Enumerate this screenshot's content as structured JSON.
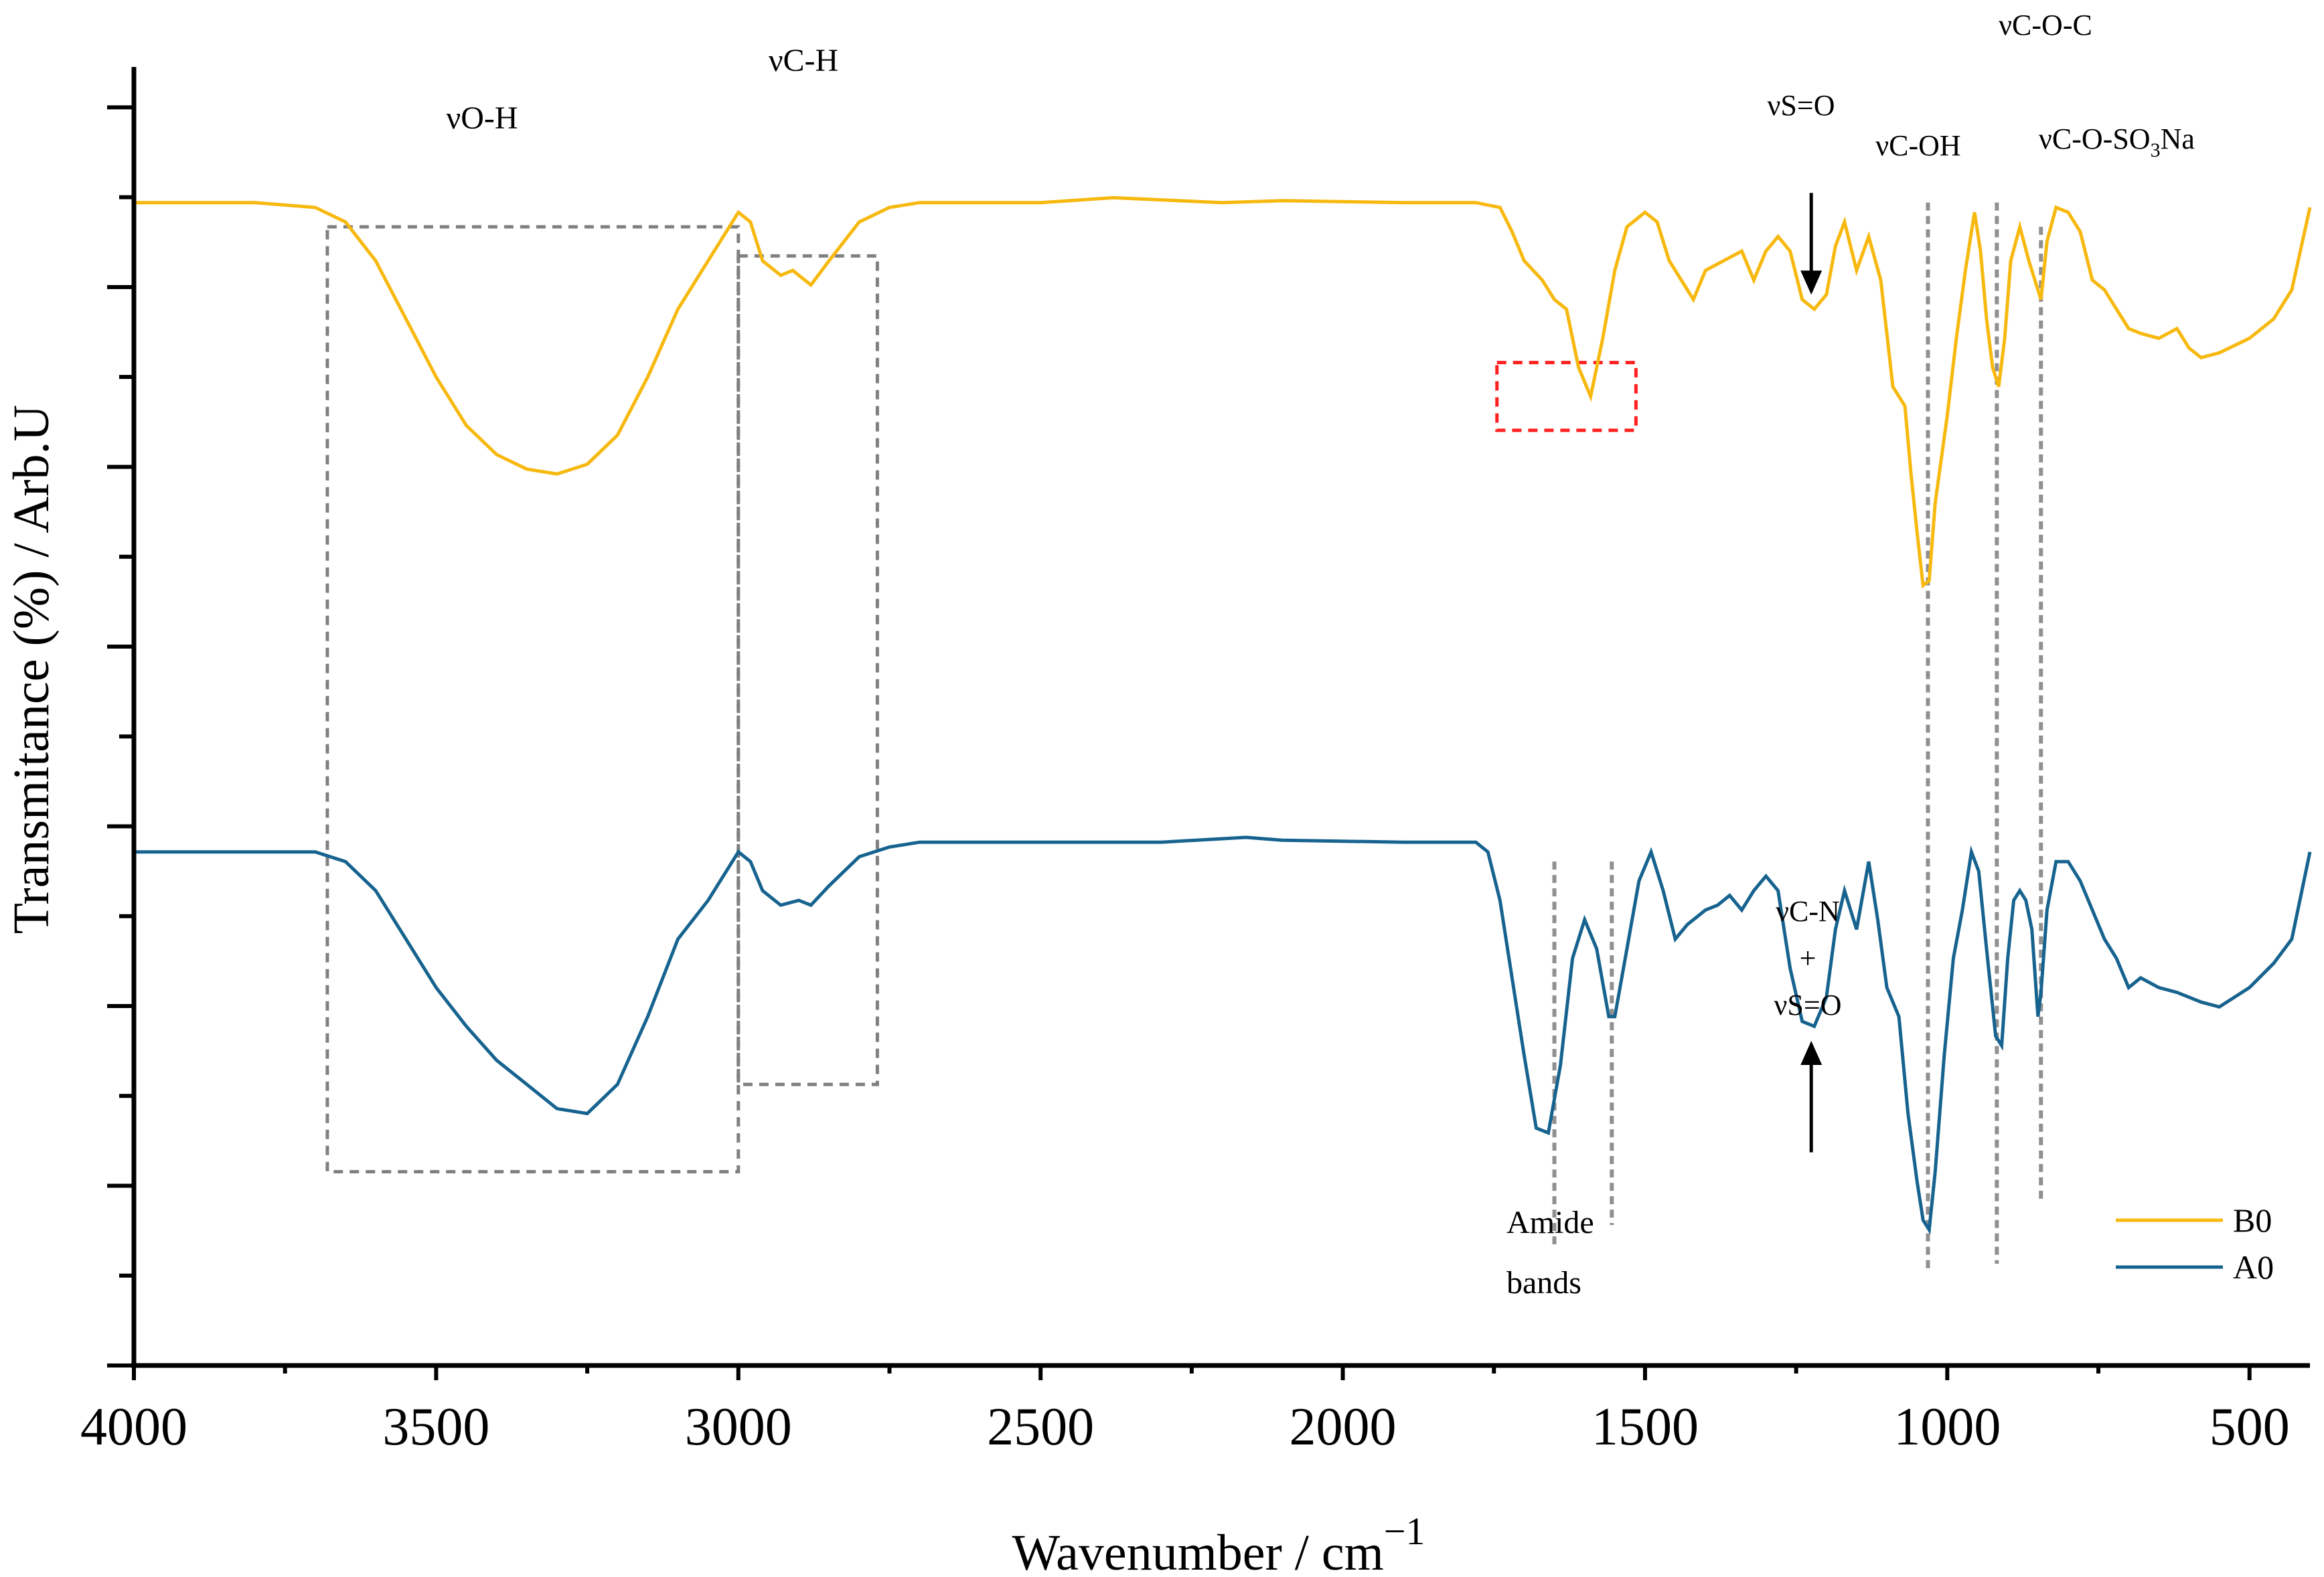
{
  "chart_data": {
    "type": "line",
    "title": "",
    "xlabel": "Wavenumber / cm",
    "xlabel_superscript": "−1",
    "ylabel": "Transmitance (%) / Arb.U",
    "xlim": [
      4000,
      400
    ],
    "x_reversed": true,
    "xticks": [
      4000,
      3500,
      3000,
      2500,
      2000,
      1500,
      1000,
      500
    ],
    "ylim": [
      0,
      13.4
    ],
    "y_minor_ticks": 14,
    "legend_position": "bottom-right",
    "colors": {
      "B0": "#f7b90f",
      "A0": "#17638f"
    },
    "series": [
      {
        "name": "B0",
        "color": "#f7b90f",
        "points": [
          [
            4000,
            12.0
          ],
          [
            3900,
            12.0
          ],
          [
            3800,
            12.0
          ],
          [
            3700,
            11.95
          ],
          [
            3650,
            11.8
          ],
          [
            3600,
            11.4
          ],
          [
            3550,
            10.8
          ],
          [
            3500,
            10.2
          ],
          [
            3450,
            9.7
          ],
          [
            3400,
            9.4
          ],
          [
            3350,
            9.25
          ],
          [
            3300,
            9.2
          ],
          [
            3250,
            9.3
          ],
          [
            3200,
            9.6
          ],
          [
            3150,
            10.2
          ],
          [
            3100,
            10.9
          ],
          [
            3050,
            11.4
          ],
          [
            3000,
            11.9
          ],
          [
            2980,
            11.8
          ],
          [
            2960,
            11.4
          ],
          [
            2930,
            11.25
          ],
          [
            2910,
            11.3
          ],
          [
            2880,
            11.15
          ],
          [
            2850,
            11.4
          ],
          [
            2800,
            11.8
          ],
          [
            2750,
            11.95
          ],
          [
            2700,
            12.0
          ],
          [
            2500,
            12.0
          ],
          [
            2380,
            12.05
          ],
          [
            2200,
            12.0
          ],
          [
            2100,
            12.02
          ],
          [
            1900,
            12.0
          ],
          [
            1780,
            12.0
          ],
          [
            1740,
            11.95
          ],
          [
            1720,
            11.7
          ],
          [
            1700,
            11.4
          ],
          [
            1670,
            11.2
          ],
          [
            1650,
            11.0
          ],
          [
            1630,
            10.9
          ],
          [
            1610,
            10.3
          ],
          [
            1590,
            10.0
          ],
          [
            1570,
            10.6
          ],
          [
            1550,
            11.3
          ],
          [
            1530,
            11.75
          ],
          [
            1500,
            11.9
          ],
          [
            1480,
            11.8
          ],
          [
            1460,
            11.4
          ],
          [
            1440,
            11.2
          ],
          [
            1420,
            11.0
          ],
          [
            1400,
            11.3
          ],
          [
            1370,
            11.4
          ],
          [
            1340,
            11.5
          ],
          [
            1320,
            11.2
          ],
          [
            1300,
            11.5
          ],
          [
            1280,
            11.65
          ],
          [
            1260,
            11.5
          ],
          [
            1240,
            11.0
          ],
          [
            1220,
            10.9
          ],
          [
            1200,
            11.05
          ],
          [
            1185,
            11.55
          ],
          [
            1170,
            11.8
          ],
          [
            1150,
            11.3
          ],
          [
            1130,
            11.65
          ],
          [
            1110,
            11.2
          ],
          [
            1090,
            10.1
          ],
          [
            1070,
            9.9
          ],
          [
            1060,
            9.2
          ],
          [
            1050,
            8.6
          ],
          [
            1040,
            8.05
          ],
          [
            1030,
            8.1
          ],
          [
            1020,
            8.9
          ],
          [
            1000,
            9.8
          ],
          [
            985,
            10.6
          ],
          [
            970,
            11.3
          ],
          [
            955,
            11.9
          ],
          [
            945,
            11.5
          ],
          [
            935,
            10.8
          ],
          [
            925,
            10.3
          ],
          [
            915,
            10.1
          ],
          [
            905,
            10.6
          ],
          [
            895,
            11.4
          ],
          [
            880,
            11.75
          ],
          [
            865,
            11.4
          ],
          [
            855,
            11.2
          ],
          [
            845,
            11.0
          ],
          [
            835,
            11.6
          ],
          [
            820,
            11.95
          ],
          [
            800,
            11.9
          ],
          [
            780,
            11.7
          ],
          [
            760,
            11.2
          ],
          [
            740,
            11.1
          ],
          [
            720,
            10.9
          ],
          [
            700,
            10.7
          ],
          [
            680,
            10.65
          ],
          [
            650,
            10.6
          ],
          [
            620,
            10.7
          ],
          [
            600,
            10.5
          ],
          [
            580,
            10.4
          ],
          [
            550,
            10.45
          ],
          [
            500,
            10.6
          ],
          [
            460,
            10.8
          ],
          [
            430,
            11.1
          ],
          [
            400,
            11.95
          ]
        ]
      },
      {
        "name": "A0",
        "color": "#17638f",
        "points": [
          [
            4000,
            5.3
          ],
          [
            3900,
            5.3
          ],
          [
            3800,
            5.3
          ],
          [
            3700,
            5.3
          ],
          [
            3650,
            5.2
          ],
          [
            3600,
            4.9
          ],
          [
            3550,
            4.4
          ],
          [
            3500,
            3.9
          ],
          [
            3450,
            3.5
          ],
          [
            3400,
            3.15
          ],
          [
            3350,
            2.9
          ],
          [
            3300,
            2.65
          ],
          [
            3250,
            2.6
          ],
          [
            3200,
            2.9
          ],
          [
            3150,
            3.6
          ],
          [
            3100,
            4.4
          ],
          [
            3050,
            4.8
          ],
          [
            3000,
            5.3
          ],
          [
            2980,
            5.2
          ],
          [
            2960,
            4.9
          ],
          [
            2930,
            4.75
          ],
          [
            2900,
            4.8
          ],
          [
            2880,
            4.75
          ],
          [
            2850,
            4.95
          ],
          [
            2800,
            5.25
          ],
          [
            2750,
            5.35
          ],
          [
            2700,
            5.4
          ],
          [
            2500,
            5.4
          ],
          [
            2300,
            5.4
          ],
          [
            2160,
            5.45
          ],
          [
            2100,
            5.42
          ],
          [
            1900,
            5.4
          ],
          [
            1780,
            5.4
          ],
          [
            1760,
            5.3
          ],
          [
            1740,
            4.8
          ],
          [
            1720,
            4.0
          ],
          [
            1700,
            3.2
          ],
          [
            1680,
            2.45
          ],
          [
            1660,
            2.4
          ],
          [
            1640,
            3.1
          ],
          [
            1620,
            4.2
          ],
          [
            1600,
            4.6
          ],
          [
            1580,
            4.3
          ],
          [
            1560,
            3.6
          ],
          [
            1550,
            3.6
          ],
          [
            1530,
            4.3
          ],
          [
            1510,
            5.0
          ],
          [
            1490,
            5.3
          ],
          [
            1470,
            4.9
          ],
          [
            1450,
            4.4
          ],
          [
            1430,
            4.55
          ],
          [
            1400,
            4.7
          ],
          [
            1380,
            4.75
          ],
          [
            1360,
            4.85
          ],
          [
            1340,
            4.7
          ],
          [
            1320,
            4.9
          ],
          [
            1300,
            5.05
          ],
          [
            1280,
            4.9
          ],
          [
            1260,
            4.1
          ],
          [
            1240,
            3.55
          ],
          [
            1220,
            3.5
          ],
          [
            1200,
            3.8
          ],
          [
            1185,
            4.5
          ],
          [
            1170,
            4.9
          ],
          [
            1150,
            4.5
          ],
          [
            1130,
            5.2
          ],
          [
            1115,
            4.6
          ],
          [
            1100,
            3.9
          ],
          [
            1080,
            3.6
          ],
          [
            1065,
            2.6
          ],
          [
            1050,
            1.9
          ],
          [
            1040,
            1.5
          ],
          [
            1030,
            1.4
          ],
          [
            1020,
            2.0
          ],
          [
            1005,
            3.2
          ],
          [
            990,
            4.2
          ],
          [
            975,
            4.7
          ],
          [
            960,
            5.3
          ],
          [
            948,
            5.1
          ],
          [
            935,
            4.3
          ],
          [
            920,
            3.4
          ],
          [
            910,
            3.3
          ],
          [
            900,
            4.2
          ],
          [
            890,
            4.8
          ],
          [
            880,
            4.9
          ],
          [
            870,
            4.8
          ],
          [
            860,
            4.5
          ],
          [
            850,
            3.6
          ],
          [
            845,
            3.85
          ],
          [
            835,
            4.7
          ],
          [
            820,
            5.2
          ],
          [
            800,
            5.2
          ],
          [
            780,
            5.0
          ],
          [
            760,
            4.7
          ],
          [
            740,
            4.4
          ],
          [
            720,
            4.2
          ],
          [
            700,
            3.9
          ],
          [
            680,
            4.0
          ],
          [
            650,
            3.9
          ],
          [
            620,
            3.85
          ],
          [
            580,
            3.75
          ],
          [
            550,
            3.7
          ],
          [
            500,
            3.9
          ],
          [
            460,
            4.15
          ],
          [
            430,
            4.4
          ],
          [
            400,
            5.3
          ]
        ]
      }
    ],
    "annotations": {
      "oh": "νO-H",
      "ch": "νC-H",
      "so_top": "νS=O",
      "coh": "νC-OH",
      "coc": "νC-O-C",
      "coso3_prefix": "νC-O-SO",
      "coso3_sub": "3",
      "coso3_suffix": "Na",
      "cn_line1": "νC-N",
      "cn_line2": "+",
      "cn_line3": "νS=O",
      "amide_line1": "Amide",
      "amide_line2": "bands"
    },
    "regions": {
      "oh_box": {
        "x": [
          3680,
          3000
        ],
        "y": [
          2.0,
          11.75
        ]
      },
      "ch_box": {
        "x": [
          3000,
          2770
        ],
        "y": [
          2.9,
          11.45
        ]
      },
      "amide_box": {
        "x": [
          1745,
          1515
        ],
        "y": [
          9.65,
          10.35
        ]
      }
    },
    "marker_lines": [
      {
        "x": 1650,
        "y": [
          5.2,
          1.25
        ]
      },
      {
        "x": 1555,
        "y": [
          5.2,
          1.45
        ]
      },
      {
        "x": 1032,
        "y": [
          12.0,
          0.95
        ]
      },
      {
        "x": 918,
        "y": [
          12.0,
          1.05
        ]
      },
      {
        "x": 845,
        "y": [
          11.75,
          1.7
        ]
      }
    ],
    "arrows": [
      {
        "x": 1225,
        "y_from": 12.1,
        "y_to": 11.05
      },
      {
        "x": 1225,
        "y_from": 2.2,
        "y_to": 3.35
      }
    ]
  }
}
